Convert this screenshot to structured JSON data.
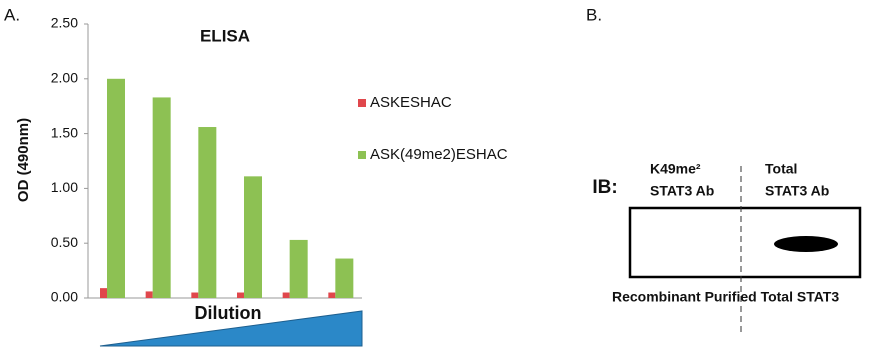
{
  "panels": {
    "a_label": "A.",
    "b_label": "B."
  },
  "chart_data": {
    "type": "bar",
    "title": "ELISA",
    "y_label": "OD (490nm)",
    "x_label": "Dilution",
    "categories": [
      null,
      null,
      null,
      null,
      null,
      null
    ],
    "series": [
      {
        "name": "ASKESHAC",
        "color": "#e0474c",
        "values": [
          0.09,
          0.06,
          0.05,
          0.05,
          0.05,
          0.05
        ]
      },
      {
        "name": "ASK(49me2)ESHAC",
        "color": "#8dc153",
        "values": [
          2.0,
          1.83,
          1.56,
          1.11,
          0.53,
          0.36
        ]
      }
    ],
    "ylim": [
      0,
      2.5
    ],
    "yticks": [
      {
        "value": 0,
        "label": "0.00"
      },
      {
        "value": 0.5,
        "label": "0.50"
      },
      {
        "value": 1,
        "label": "1.00"
      },
      {
        "value": 1.5,
        "label": "1.50"
      },
      {
        "value": 2,
        "label": "2.00"
      },
      {
        "value": 2.5,
        "label": "2.50"
      }
    ],
    "grid": false,
    "legend": "right"
  },
  "blot": {
    "ib_label": "IB:",
    "lane1_line1": "K49me²",
    "lane1_line2": "STAT3 Ab",
    "lane2_line1": "Total",
    "lane2_line2": "STAT3 Ab",
    "footer": "Recombinant Purified Total STAT3"
  }
}
